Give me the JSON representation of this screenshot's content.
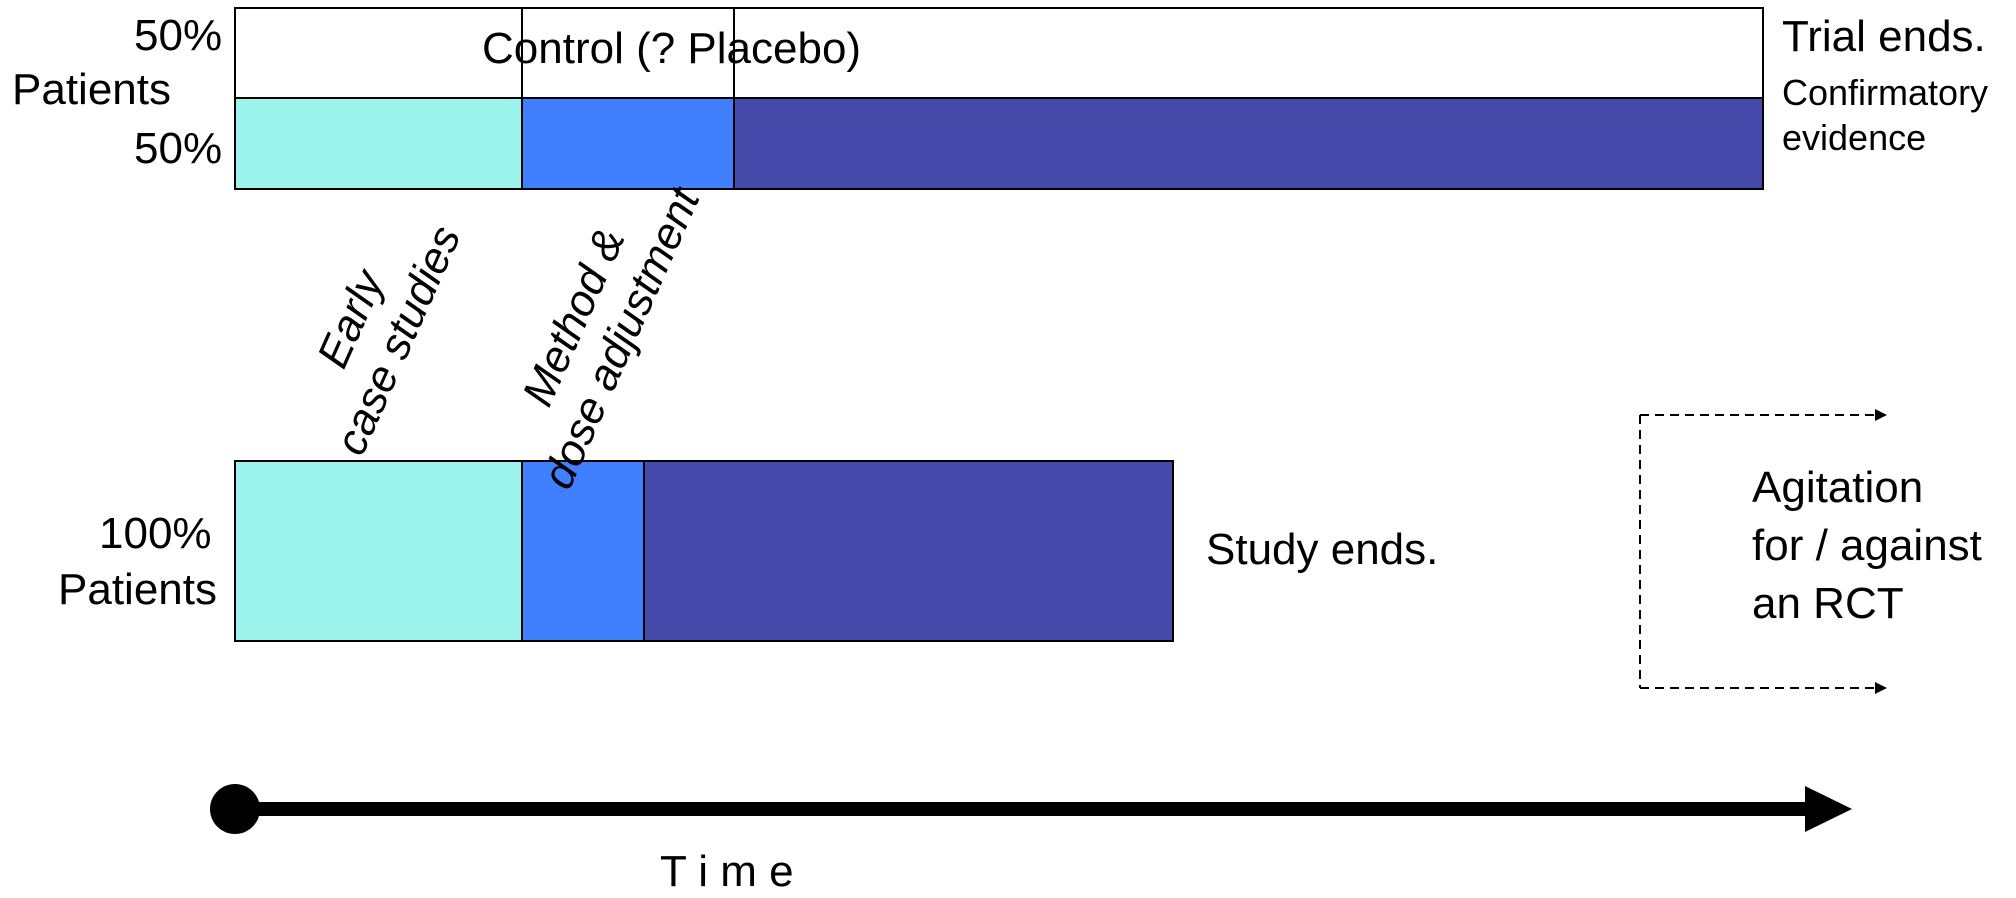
{
  "colors": {
    "early": "#9cf4ec",
    "method": "#4080ff",
    "main": "#4449aa",
    "control": "#ffffff",
    "outline": "#000000"
  },
  "trial": {
    "top_label_line1": "50%",
    "top_label_line2": "Patients",
    "bottom_label": "50%",
    "control_label": "Control (? Placebo)",
    "end_title": "Trial ends.",
    "end_sub1": "Confirmatory",
    "end_sub2": "evidence"
  },
  "phases": {
    "early_line1": "Early",
    "early_line2": "case studies",
    "method_line1": "Method &",
    "method_line2": "dose adjustment"
  },
  "study": {
    "label_line1": "100%",
    "label_line2": "Patients",
    "end_label": "Study ends."
  },
  "agitation": {
    "line1": "Agitation",
    "line2": "for / against",
    "line3": "an RCT"
  },
  "time_axis": {
    "label": "T i m e"
  }
}
